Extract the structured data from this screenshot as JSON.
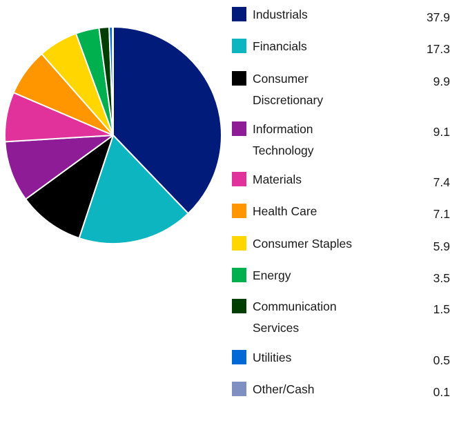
{
  "chart_data": {
    "type": "pie",
    "title": "",
    "categories": [
      "Industrials",
      "Financials",
      "Consumer Discretionary",
      "Information Technology",
      "Materials",
      "Health Care",
      "Consumer Staples",
      "Energy",
      "Communication Services",
      "Utilities",
      "Other/Cash"
    ],
    "values": [
      37.9,
      17.3,
      9.9,
      9.1,
      7.4,
      7.1,
      5.9,
      3.5,
      1.5,
      0.5,
      0.1
    ],
    "labels": [
      [
        "Industrials"
      ],
      [
        "Financials"
      ],
      [
        "Consumer",
        "Discretionary"
      ],
      [
        "Information",
        "Technology"
      ],
      [
        "Materials"
      ],
      [
        "Health Care"
      ],
      [
        "Consumer Staples"
      ],
      [
        "Energy"
      ],
      [
        "Communication",
        "Services"
      ],
      [
        "Utilities"
      ],
      [
        "Other/Cash"
      ]
    ],
    "value_labels": [
      "37.9",
      "17.3",
      "9.9",
      "9.1",
      "7.4",
      "7.1",
      "5.9",
      "3.5",
      "1.5",
      "0.5",
      "0.1"
    ],
    "colors": [
      "#001b7a",
      "#0cb5c0",
      "#000000",
      "#8e1c97",
      "#e0329a",
      "#ff9600",
      "#ffd600",
      "#00b04f",
      "#003d00",
      "#0069d6",
      "#7f8fc2"
    ],
    "legend_position": "right",
    "start_angle": "top, clockwise"
  }
}
